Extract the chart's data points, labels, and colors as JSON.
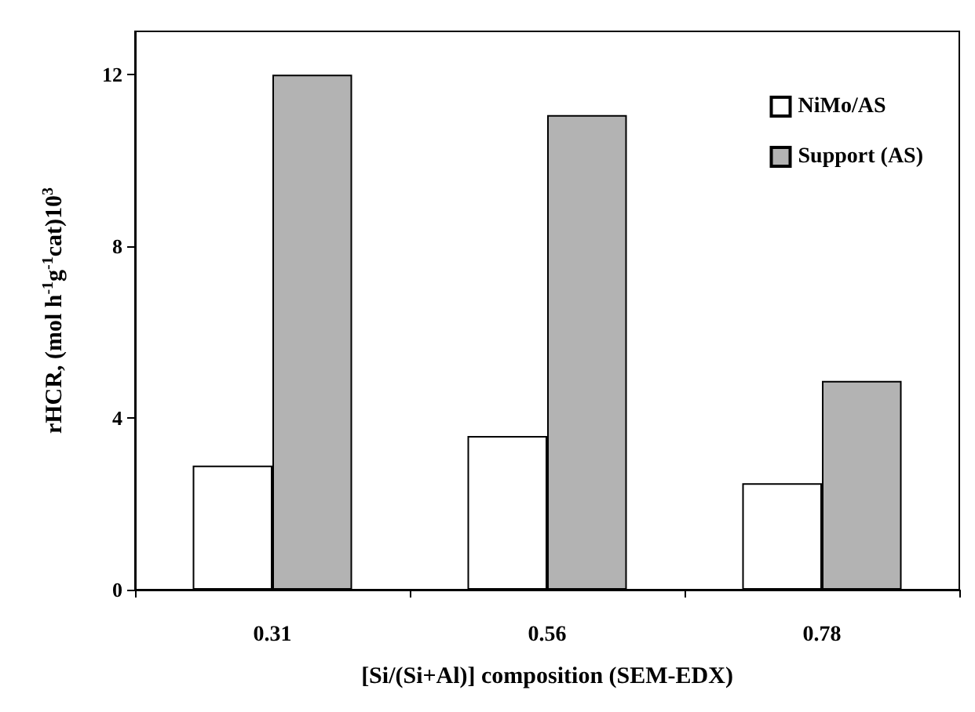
{
  "chart_data": {
    "type": "bar",
    "xlabel": "[Si/(Si+Al)] composition (SEM-EDX)",
    "ylabel": "rHCR, (mol h$^{-1}$g$^{-1}$cat)10$^{3}$",
    "categories": [
      "0.31",
      "0.56",
      "0.78"
    ],
    "series": [
      {
        "name": "NiMo/AS",
        "color": "#ffffff",
        "values": [
          2.89,
          3.58,
          2.48
        ]
      },
      {
        "name": "Support (AS)",
        "color": "#b3b3b3",
        "values": [
          11.99,
          11.05,
          4.86
        ]
      }
    ],
    "ylim": [
      0,
      13
    ],
    "yticks": [
      0,
      4,
      8,
      12
    ],
    "grid": false,
    "legend": "top right"
  }
}
